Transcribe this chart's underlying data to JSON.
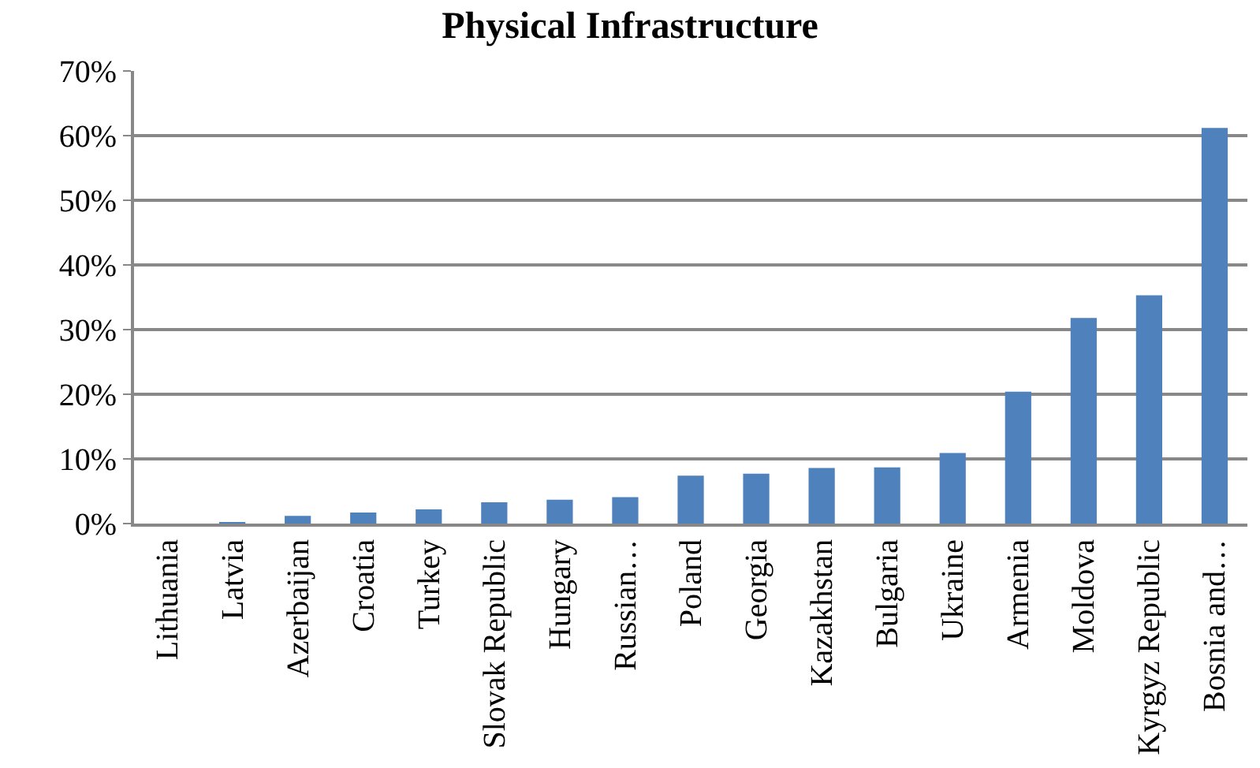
{
  "chart_data": {
    "type": "bar",
    "title": "Physical Infrastructure",
    "categories": [
      "Lithuania",
      "Latvia",
      "Azerbaijan",
      "Croatia",
      "Turkey",
      "Slovak Republic",
      "Hungary",
      "Russian…",
      "Poland",
      "Georgia",
      "Kazakhstan",
      "Bulgaria",
      "Ukraine",
      "Armenia",
      "Moldova",
      "Kyrgyz Republic",
      "Bosnia and…"
    ],
    "values": [
      0,
      0.2,
      1.2,
      1.7,
      2.2,
      3.3,
      3.7,
      4.1,
      7.4,
      7.7,
      8.6,
      8.7,
      10.9,
      20.4,
      31.8,
      35.3,
      61.2
    ],
    "color": "#4f81bd",
    "ylim": [
      0,
      70
    ],
    "yticks": [
      {
        "value": 0,
        "label": "0%"
      },
      {
        "value": 10,
        "label": "10%"
      },
      {
        "value": 20,
        "label": "20%"
      },
      {
        "value": 30,
        "label": "30%"
      },
      {
        "value": 40,
        "label": "40%"
      },
      {
        "value": 50,
        "label": "50%"
      },
      {
        "value": 60,
        "label": "60%"
      },
      {
        "value": 70,
        "label": "70%"
      }
    ],
    "grid": "y"
  }
}
